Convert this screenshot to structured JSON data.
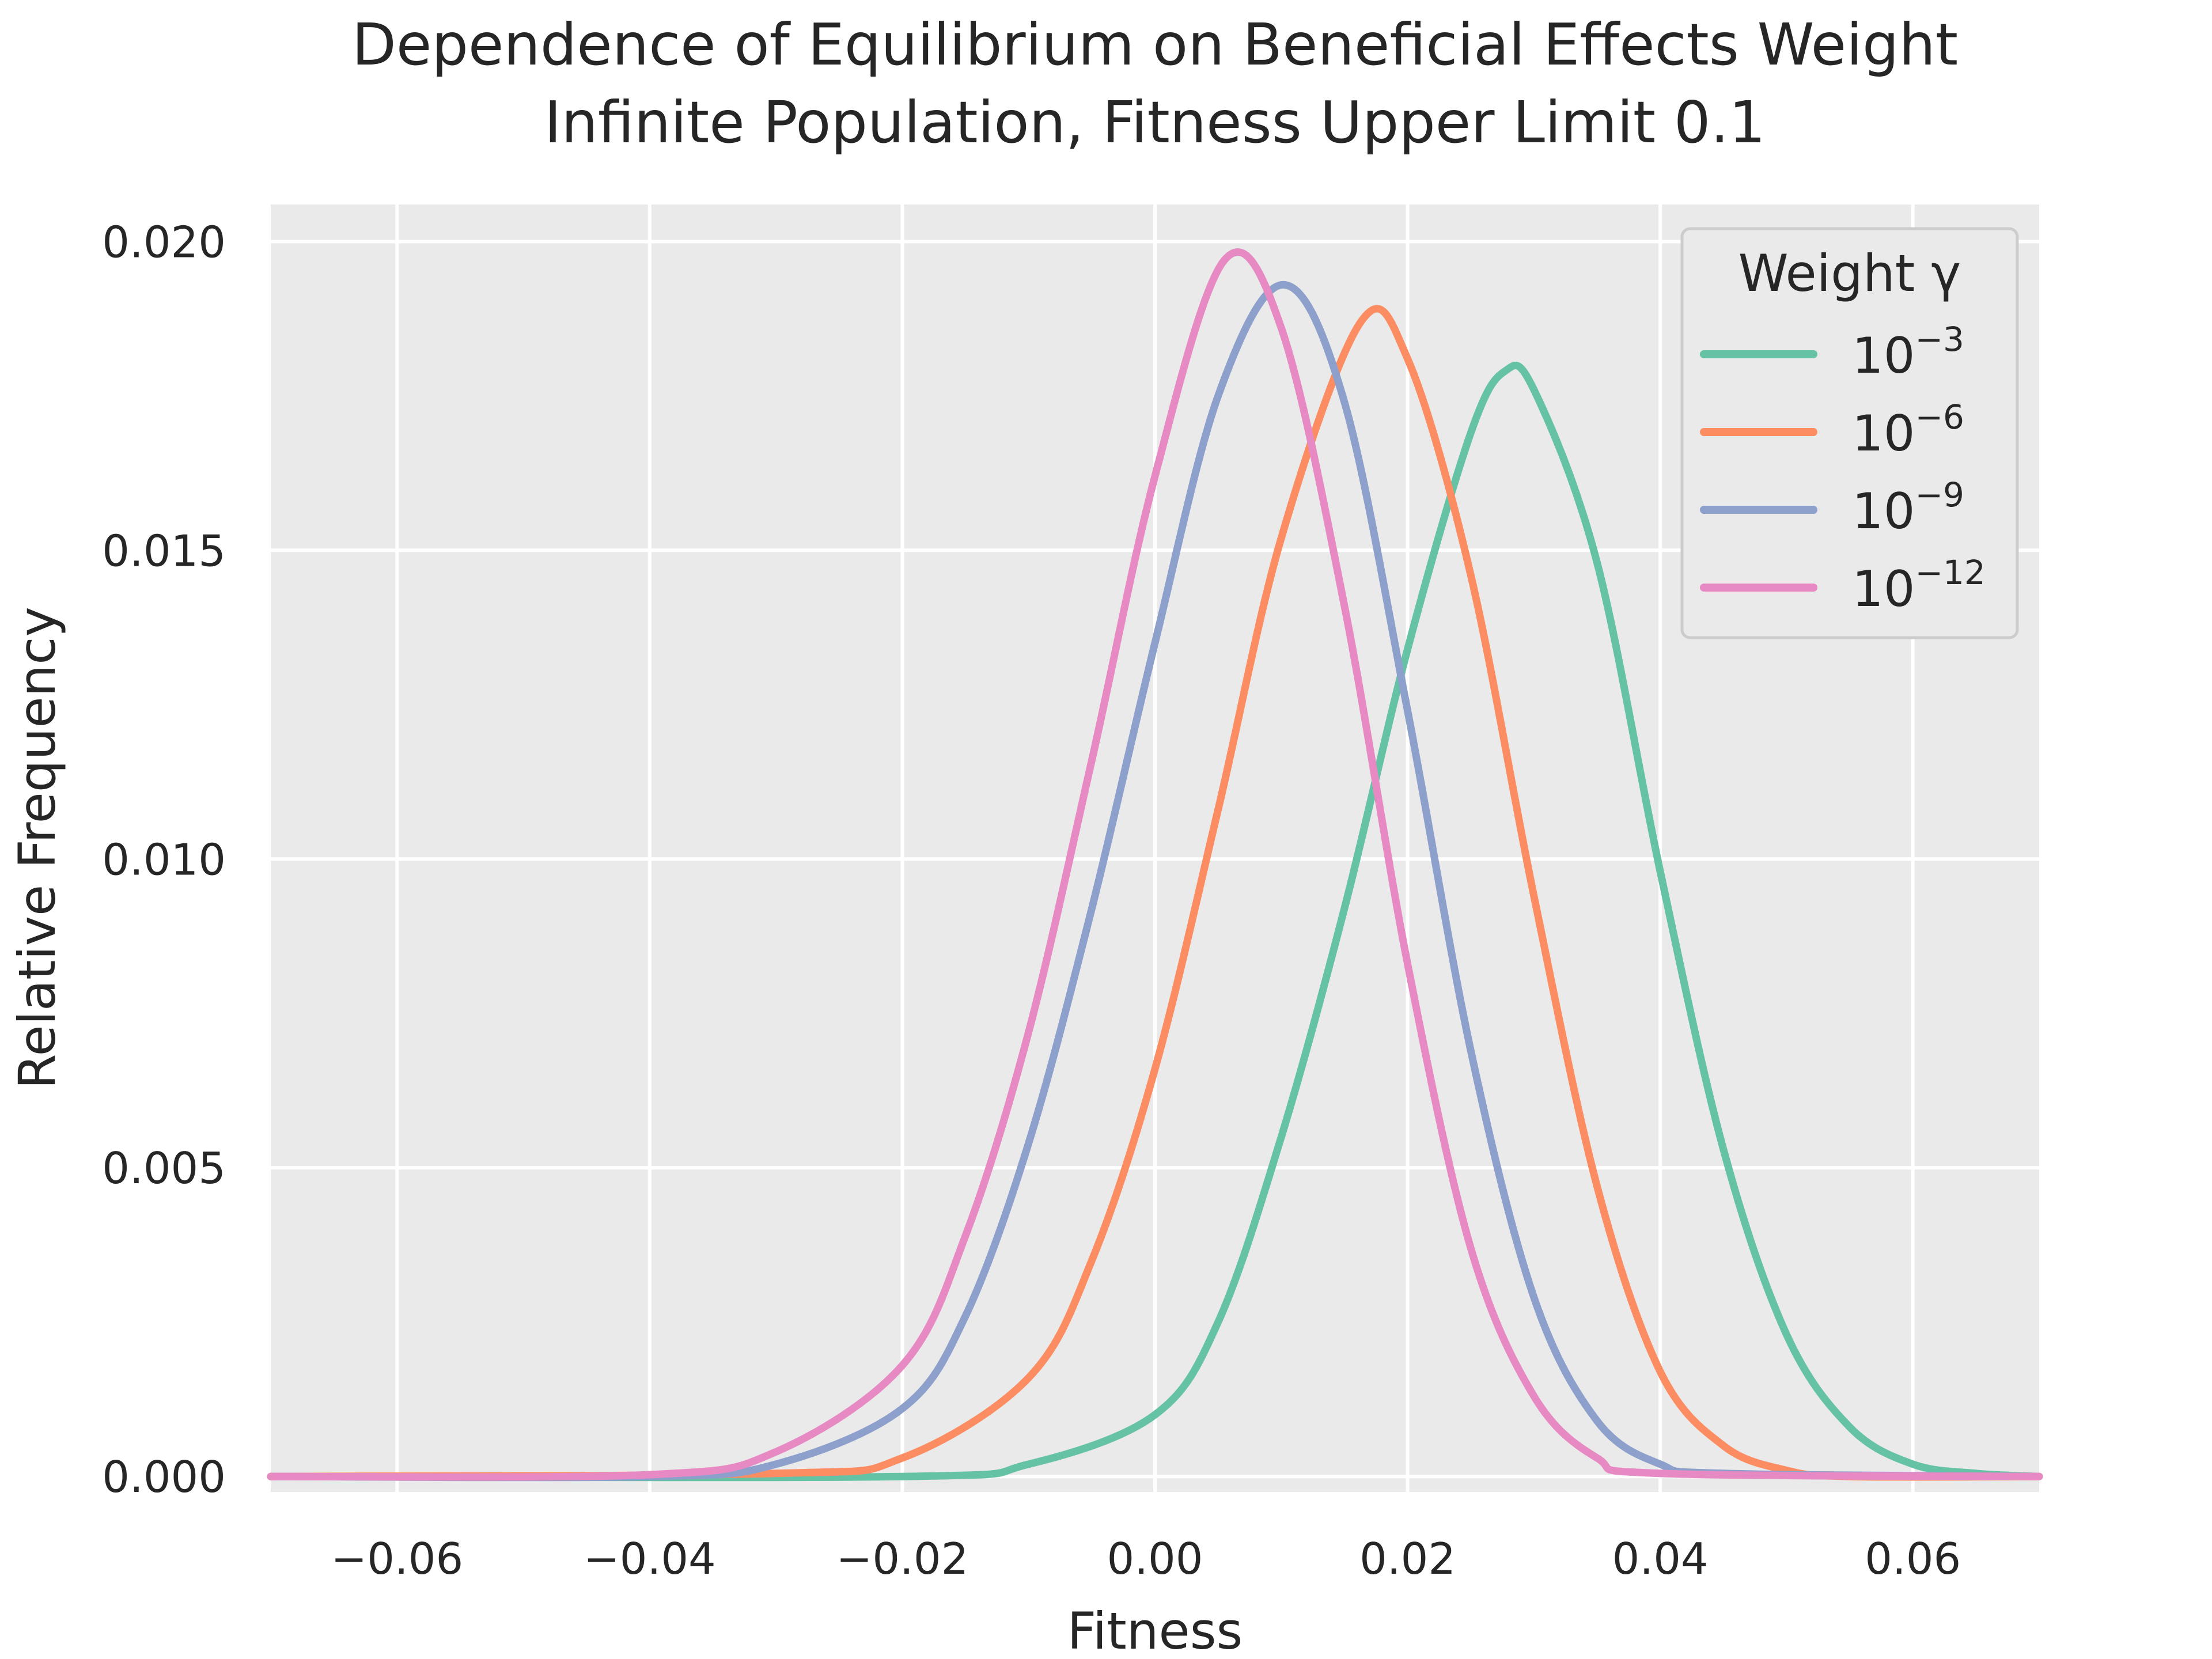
{
  "chart_data": {
    "type": "line",
    "title": "Dependence of Equilibrium on Beneficial Effects Weight",
    "subtitle": "Infinite Population, Fitness Upper Limit 0.1",
    "xlabel": "Fitness",
    "ylabel": "Relative Frequency",
    "xlim": [
      -0.07,
      0.07
    ],
    "ylim": [
      -0.00025,
      0.0206
    ],
    "xticks": [
      -0.06,
      -0.04,
      -0.02,
      0.0,
      0.02,
      0.04,
      0.06
    ],
    "xtick_labels": [
      "−0.06",
      "−0.04",
      "−0.02",
      "0.00",
      "0.02",
      "0.04",
      "0.06"
    ],
    "yticks": [
      0.0,
      0.005,
      0.01,
      0.015,
      0.02
    ],
    "ytick_labels": [
      "0.000",
      "0.005",
      "0.010",
      "0.015",
      "0.020"
    ],
    "grid": true,
    "legend": {
      "title": "Weight γ",
      "placement": "top-right",
      "entries": [
        {
          "base": "10",
          "exp": "−3"
        },
        {
          "base": "10",
          "exp": "−6"
        },
        {
          "base": "10",
          "exp": "−9"
        },
        {
          "base": "10",
          "exp": "−12"
        }
      ]
    },
    "series": [
      {
        "color": "#66c2a5",
        "x": [
          -0.07,
          -0.02,
          -0.01,
          0.0,
          0.005,
          0.01,
          0.015,
          0.02,
          0.025,
          0.0277,
          0.03,
          0.035,
          0.04,
          0.045,
          0.05,
          0.055,
          0.06,
          0.065,
          0.07
        ],
        "y": [
          0.0,
          0.0,
          0.0002,
          0.001,
          0.0025,
          0.0055,
          0.0092,
          0.0134,
          0.0169,
          0.0179,
          0.0176,
          0.0148,
          0.0098,
          0.0053,
          0.0023,
          0.0008,
          0.0002,
          5e-05,
          0.0
        ]
      },
      {
        "color": "#fc8d62",
        "x": [
          -0.07,
          -0.03,
          -0.02,
          -0.01,
          -0.005,
          0.0,
          0.005,
          0.01,
          0.0163,
          0.02,
          0.025,
          0.03,
          0.035,
          0.04,
          0.045,
          0.05,
          0.055,
          0.07
        ],
        "y": [
          0.0,
          5e-05,
          0.0003,
          0.0016,
          0.0035,
          0.0066,
          0.0108,
          0.0152,
          0.0187,
          0.0181,
          0.0146,
          0.0094,
          0.0047,
          0.0017,
          0.0005,
          0.0001,
          0.0,
          0.0
        ]
      },
      {
        "color": "#8da0cb",
        "x": [
          -0.07,
          -0.04,
          -0.03,
          -0.02,
          -0.015,
          -0.01,
          -0.005,
          0.0,
          0.005,
          0.0102,
          0.015,
          0.02,
          0.025,
          0.03,
          0.035,
          0.04,
          0.045,
          0.07
        ],
        "y": [
          0.0,
          0.0,
          0.0002,
          0.0011,
          0.0026,
          0.0054,
          0.0092,
          0.0135,
          0.0175,
          0.0193,
          0.0174,
          0.0124,
          0.0069,
          0.0029,
          0.0009,
          0.0002,
          5e-05,
          0.0
        ]
      },
      {
        "color": "#e78ac3",
        "x": [
          -0.07,
          -0.04,
          -0.03,
          -0.02,
          -0.015,
          -0.01,
          -0.005,
          0.0,
          0.0055,
          0.01,
          0.015,
          0.02,
          0.025,
          0.03,
          0.035,
          0.04,
          0.07
        ],
        "y": [
          0.0,
          3e-05,
          0.0004,
          0.0018,
          0.0039,
          0.0072,
          0.0116,
          0.0162,
          0.0197,
          0.0186,
          0.0141,
          0.0083,
          0.0037,
          0.0013,
          0.0003,
          5e-05,
          0.0
        ]
      }
    ]
  }
}
